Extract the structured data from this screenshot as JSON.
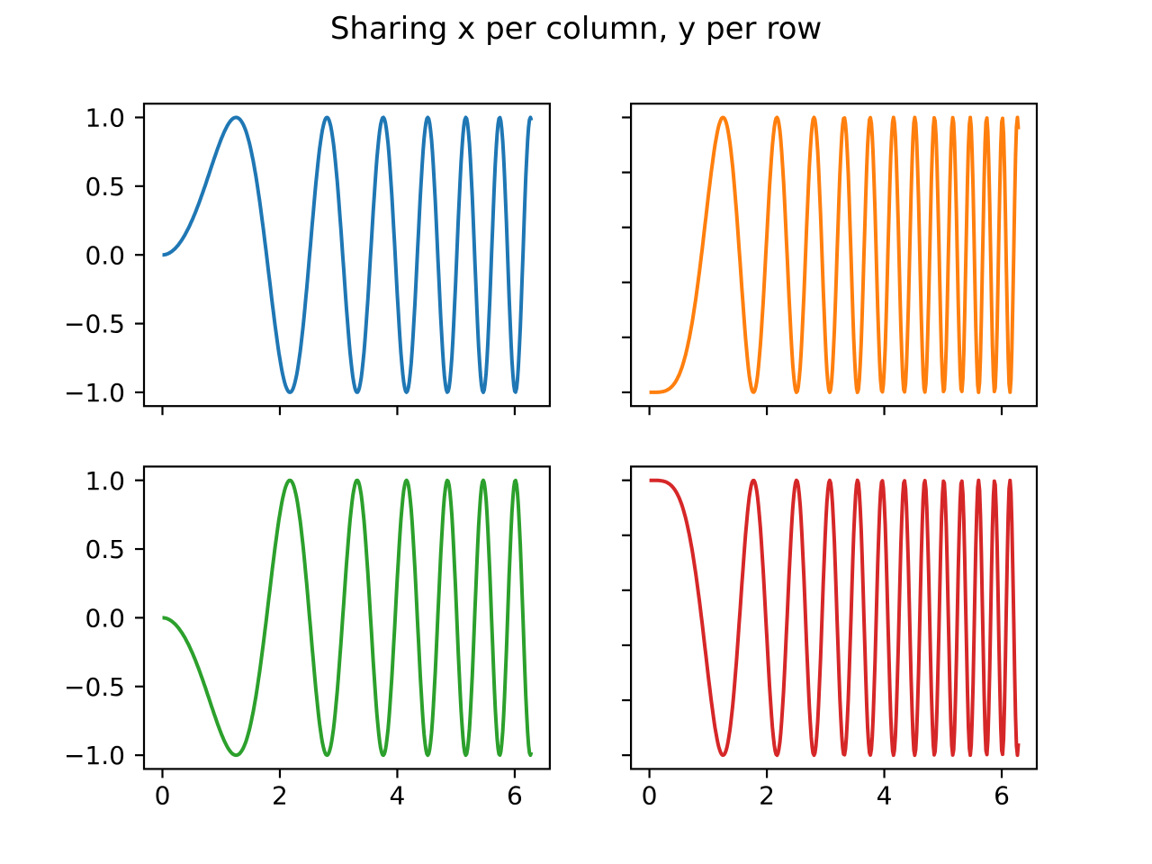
{
  "title": "Sharing x per column, y per row",
  "background_color": "#ffffff",
  "text_color": "#000000",
  "spine_color": "#000000",
  "chart_data": {
    "type": "line",
    "title": "Sharing x per column, y per row",
    "layout_description": "2x2 grid of subplots; x tick labels only on bottom row, y tick labels only on left column",
    "x_sampling": {
      "start": 0,
      "end": 6.283185307179586,
      "n": 400,
      "description": "x = linspace(0, 2*pi, 400)"
    },
    "xlim": [
      -0.3141592653589793,
      6.5973445725385655
    ],
    "ylim": [
      -1.1,
      1.1
    ],
    "grid": false,
    "legend": false,
    "subplots": [
      {
        "name": "top-left",
        "row": 0,
        "col": 0,
        "formula": "y = sin(x^2)",
        "fn": "sin",
        "freq": 1,
        "sign": 1,
        "color": "#1f77b4",
        "color_name": "tab:blue",
        "y_range": [
          -1,
          1
        ],
        "xticks": [
          0,
          2,
          4,
          6
        ],
        "xticklabels": [],
        "yticks": [
          1.0,
          0.5,
          0.0,
          -0.5,
          -1.0
        ],
        "yticklabels": [
          "1.0",
          "0.5",
          "0.0",
          "−0.5",
          "−1.0"
        ]
      },
      {
        "name": "top-right",
        "row": 0,
        "col": 1,
        "formula": "y = -cos(2*x^2)",
        "fn": "cos",
        "freq": 2,
        "sign": -1,
        "color": "#ff7f0e",
        "color_name": "tab:orange",
        "y_range": [
          -1,
          1
        ],
        "xticks": [
          0,
          2,
          4,
          6
        ],
        "xticklabels": [],
        "yticks": [
          1.0,
          0.6,
          0.2,
          -0.2,
          -0.6,
          -1.0
        ],
        "yticklabels": []
      },
      {
        "name": "bottom-left",
        "row": 1,
        "col": 0,
        "formula": "y = -sin(x^2)",
        "fn": "sin",
        "freq": 1,
        "sign": -1,
        "color": "#2ca02c",
        "color_name": "tab:green",
        "y_range": [
          -1,
          1
        ],
        "xticks": [
          0,
          2,
          4,
          6
        ],
        "xticklabels": [
          "0",
          "2",
          "4",
          "6"
        ],
        "yticks": [
          1.0,
          0.5,
          0.0,
          -0.5,
          -1.0
        ],
        "yticklabels": [
          "1.0",
          "0.5",
          "0.0",
          "−0.5",
          "−1.0"
        ]
      },
      {
        "name": "bottom-right",
        "row": 1,
        "col": 1,
        "formula": "y = cos(2*x^2)",
        "fn": "cos",
        "freq": 2,
        "sign": 1,
        "color": "#d62728",
        "color_name": "tab:red",
        "y_range": [
          -1,
          1
        ],
        "xticks": [
          0,
          2,
          4,
          6
        ],
        "xticklabels": [
          "0",
          "2",
          "4",
          "6"
        ],
        "yticks": [
          1.0,
          0.6,
          0.2,
          -0.2,
          -0.6,
          -1.0
        ],
        "yticklabels": []
      }
    ]
  }
}
